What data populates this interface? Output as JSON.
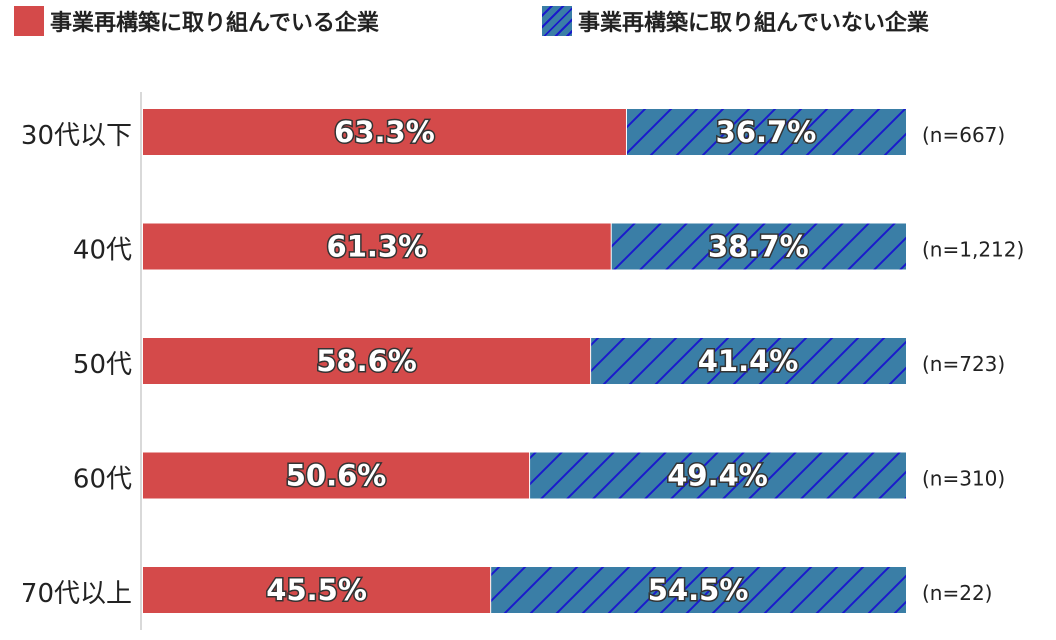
{
  "legend": {
    "series_1": "事業再構築に取り組んでいる企業",
    "series_2": "事業再構築に取り組んでいない企業"
  },
  "colors": {
    "series_1": "#d44a4a",
    "series_2": "#3a7ea6",
    "hatch": "#1a1acc"
  },
  "chart_data": {
    "type": "bar",
    "orientation": "horizontal",
    "stacked": true,
    "percent": true,
    "categories": [
      "30代以下",
      "40代",
      "50代",
      "60代",
      "70代以上"
    ],
    "series": [
      {
        "name": "事業再構築に取り組んでいる企業",
        "values": [
          63.3,
          61.3,
          58.6,
          50.6,
          45.5
        ],
        "labels": [
          "63.3%",
          "61.3%",
          "58.6%",
          "50.6%",
          "45.5%"
        ]
      },
      {
        "name": "事業再構築に取り組んでいない企業",
        "values": [
          36.7,
          38.7,
          41.4,
          49.4,
          54.5
        ],
        "labels": [
          "36.7%",
          "38.7%",
          "41.4%",
          "49.4%",
          "54.5%"
        ]
      }
    ],
    "sample_sizes": [
      "(n=667)",
      "(n=1,212)",
      "(n=723)",
      "(n=310)",
      "(n=22)"
    ],
    "xlim": [
      0,
      100
    ],
    "legend_position": "top-left",
    "grid": false
  }
}
